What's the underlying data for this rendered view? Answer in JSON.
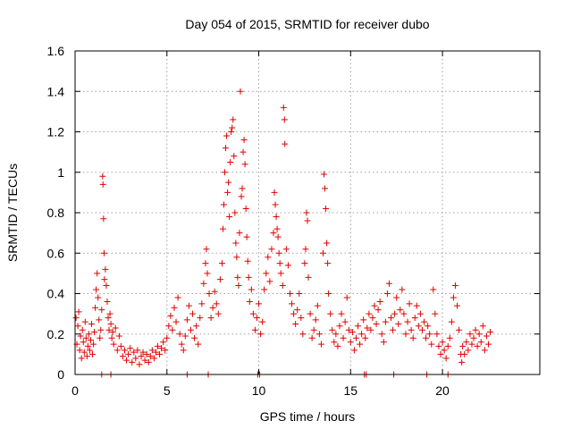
{
  "chart_data": {
    "type": "scatter",
    "title": "Day 054 of 2015, SRMTID for receiver dubo",
    "xlabel": "GPS time / hours",
    "ylabel": "SRMTID / TECUs",
    "xlim": [
      0,
      25.3
    ],
    "ylim": [
      0,
      1.6
    ],
    "x_ticks": [
      0,
      5,
      10,
      15,
      20
    ],
    "x_tick_labels": [
      "0",
      "5",
      "10",
      "15",
      "20"
    ],
    "y_ticks": [
      0,
      0.2,
      0.4,
      0.6,
      0.8,
      1.0,
      1.2,
      1.4,
      1.6
    ],
    "y_tick_labels": [
      "0",
      "0.2",
      "0.4",
      "0.6",
      "0.8",
      "1",
      "1.2",
      "1.4",
      "1.6"
    ],
    "grid": true,
    "marker": "+",
    "marker_color": "#e00000",
    "series": [
      {
        "name": "SRMTID",
        "points": [
          [
            0.05,
            0.28
          ],
          [
            0.1,
            0.15
          ],
          [
            0.15,
            0.24
          ],
          [
            0.2,
            0.31
          ],
          [
            0.25,
            0.12
          ],
          [
            0.3,
            0.19
          ],
          [
            0.35,
            0.08
          ],
          [
            0.4,
            0.22
          ],
          [
            0.45,
            0.16
          ],
          [
            0.5,
            0.11
          ],
          [
            0.55,
            0.26
          ],
          [
            0.6,
            0.18
          ],
          [
            0.65,
            0.09
          ],
          [
            0.7,
            0.14
          ],
          [
            0.75,
            0.2
          ],
          [
            0.8,
            0.12
          ],
          [
            0.85,
            0.17
          ],
          [
            0.9,
            0.25
          ],
          [
            0.95,
            0.1
          ],
          [
            1.0,
            0.15
          ],
          [
            1.05,
            0.21
          ],
          [
            1.1,
            0.33
          ],
          [
            1.15,
            0.42
          ],
          [
            1.2,
            0.5
          ],
          [
            1.25,
            0.38
          ],
          [
            1.3,
            0.27
          ],
          [
            1.35,
            0.18
          ],
          [
            1.4,
            0.22
          ],
          [
            1.45,
            0.32
          ],
          [
            1.5,
            0.98
          ],
          [
            1.52,
            0.94
          ],
          [
            1.55,
            0.77
          ],
          [
            1.58,
            0.6
          ],
          [
            1.6,
            0.47
          ],
          [
            1.65,
            0.52
          ],
          [
            1.7,
            0.44
          ],
          [
            1.75,
            0.36
          ],
          [
            1.8,
            0.28
          ],
          [
            1.85,
            0.22
          ],
          [
            1.9,
            0.3
          ],
          [
            1.95,
            0.25
          ],
          [
            2.0,
            0.18
          ],
          [
            2.05,
            0.21
          ],
          [
            2.1,
            0.15
          ],
          [
            2.2,
            0.23
          ],
          [
            2.3,
            0.12
          ],
          [
            2.4,
            0.19
          ],
          [
            2.5,
            0.14
          ],
          [
            2.6,
            0.09
          ],
          [
            2.7,
            0.12
          ],
          [
            2.8,
            0.07
          ],
          [
            2.9,
            0.1
          ],
          [
            3.0,
            0.13
          ],
          [
            3.1,
            0.06
          ],
          [
            3.2,
            0.11
          ],
          [
            3.3,
            0.08
          ],
          [
            3.4,
            0.12
          ],
          [
            3.5,
            0.05
          ],
          [
            3.6,
            0.09
          ],
          [
            3.7,
            0.11
          ],
          [
            3.8,
            0.07
          ],
          [
            3.9,
            0.1
          ],
          [
            4.0,
            0.06
          ],
          [
            4.1,
            0.09
          ],
          [
            4.2,
            0.12
          ],
          [
            4.3,
            0.08
          ],
          [
            4.4,
            0.11
          ],
          [
            4.5,
            0.14
          ],
          [
            4.6,
            0.1
          ],
          [
            4.7,
            0.13
          ],
          [
            4.8,
            0.16
          ],
          [
            4.9,
            0.12
          ],
          [
            5.0,
            0.18
          ],
          [
            5.1,
            0.24
          ],
          [
            5.2,
            0.29
          ],
          [
            5.3,
            0.22
          ],
          [
            5.4,
            0.33
          ],
          [
            5.5,
            0.26
          ],
          [
            5.6,
            0.38
          ],
          [
            5.7,
            0.2
          ],
          [
            5.8,
            0.15
          ],
          [
            5.9,
            0.12
          ],
          [
            6.0,
            0.19
          ],
          [
            6.1,
            0.27
          ],
          [
            6.2,
            0.34
          ],
          [
            6.3,
            0.22
          ],
          [
            6.4,
            0.3
          ],
          [
            6.5,
            0.18
          ],
          [
            6.6,
            0.24
          ],
          [
            6.7,
            0.15
          ],
          [
            6.8,
            0.28
          ],
          [
            6.9,
            0.35
          ],
          [
            7.0,
            0.45
          ],
          [
            7.1,
            0.55
          ],
          [
            7.15,
            0.62
          ],
          [
            7.2,
            0.5
          ],
          [
            7.3,
            0.4
          ],
          [
            7.4,
            0.28
          ],
          [
            7.5,
            0.33
          ],
          [
            7.6,
            0.41
          ],
          [
            7.7,
            0.35
          ],
          [
            7.8,
            0.3
          ],
          [
            7.9,
            0.47
          ],
          [
            8.0,
            0.55
          ],
          [
            8.05,
            0.72
          ],
          [
            8.1,
            0.84
          ],
          [
            8.15,
            1.0
          ],
          [
            8.2,
            1.12
          ],
          [
            8.25,
            1.18
          ],
          [
            8.3,
            0.9
          ],
          [
            8.35,
            0.95
          ],
          [
            8.4,
            0.78
          ],
          [
            8.45,
            1.05
          ],
          [
            8.5,
            1.2
          ],
          [
            8.55,
            1.22
          ],
          [
            8.6,
            1.26
          ],
          [
            8.65,
            1.08
          ],
          [
            8.7,
            0.8
          ],
          [
            8.75,
            0.65
          ],
          [
            8.8,
            0.58
          ],
          [
            8.85,
            0.48
          ],
          [
            8.9,
            0.44
          ],
          [
            8.95,
            0.7
          ],
          [
            9.0,
            1.4
          ],
          [
            9.05,
            0.88
          ],
          [
            9.1,
            0.92
          ],
          [
            9.15,
            1.1
          ],
          [
            9.2,
            1.16
          ],
          [
            9.25,
            1.04
          ],
          [
            9.3,
            0.82
          ],
          [
            9.35,
            0.68
          ],
          [
            9.4,
            0.56
          ],
          [
            9.45,
            0.48
          ],
          [
            9.5,
            0.36
          ],
          [
            9.6,
            0.42
          ],
          [
            9.7,
            0.3
          ],
          [
            9.8,
            0.22
          ],
          [
            9.9,
            0.28
          ],
          [
            10.0,
            0.35
          ],
          [
            10.1,
            0.2
          ],
          [
            10.2,
            0.26
          ],
          [
            10.3,
            0.42
          ],
          [
            10.4,
            0.5
          ],
          [
            10.5,
            0.58
          ],
          [
            10.6,
            0.46
          ],
          [
            10.7,
            0.62
          ],
          [
            10.8,
            0.7
          ],
          [
            10.85,
            0.9
          ],
          [
            10.9,
            0.84
          ],
          [
            10.95,
            0.78
          ],
          [
            11.0,
            0.72
          ],
          [
            11.05,
            0.68
          ],
          [
            11.1,
            0.6
          ],
          [
            11.15,
            0.55
          ],
          [
            11.2,
            0.5
          ],
          [
            11.3,
            0.44
          ],
          [
            11.35,
            1.32
          ],
          [
            11.4,
            1.26
          ],
          [
            11.42,
            1.14
          ],
          [
            11.5,
            0.62
          ],
          [
            11.6,
            0.54
          ],
          [
            11.7,
            0.4
          ],
          [
            11.8,
            0.35
          ],
          [
            11.9,
            0.3
          ],
          [
            12.0,
            0.25
          ],
          [
            12.1,
            0.32
          ],
          [
            12.2,
            0.4
          ],
          [
            12.3,
            0.28
          ],
          [
            12.4,
            0.2
          ],
          [
            12.5,
            0.55
          ],
          [
            12.55,
            0.62
          ],
          [
            12.6,
            0.8
          ],
          [
            12.65,
            0.76
          ],
          [
            12.7,
            0.48
          ],
          [
            12.8,
            0.3
          ],
          [
            12.9,
            0.18
          ],
          [
            13.0,
            0.22
          ],
          [
            13.1,
            0.27
          ],
          [
            13.2,
            0.34
          ],
          [
            13.3,
            0.2
          ],
          [
            13.4,
            0.15
          ],
          [
            13.5,
            0.6
          ],
          [
            13.55,
            0.99
          ],
          [
            13.6,
            0.92
          ],
          [
            13.65,
            0.82
          ],
          [
            13.7,
            0.65
          ],
          [
            13.75,
            0.55
          ],
          [
            13.8,
            0.4
          ],
          [
            13.9,
            0.3
          ],
          [
            14.0,
            0.22
          ],
          [
            14.1,
            0.16
          ],
          [
            14.2,
            0.2
          ],
          [
            14.3,
            0.14
          ],
          [
            14.4,
            0.24
          ],
          [
            14.5,
            0.3
          ],
          [
            14.6,
            0.18
          ],
          [
            14.7,
            0.26
          ],
          [
            14.8,
            0.38
          ],
          [
            14.9,
            0.22
          ],
          [
            15.0,
            0.16
          ],
          [
            15.1,
            0.21
          ],
          [
            15.2,
            0.12
          ],
          [
            15.3,
            0.18
          ],
          [
            15.4,
            0.24
          ],
          [
            15.5,
            0.15
          ],
          [
            15.6,
            0.2
          ],
          [
            15.7,
            0.27
          ],
          [
            15.8,
            0.18
          ],
          [
            15.9,
            0.23
          ],
          [
            16.0,
            0.3
          ],
          [
            16.1,
            0.22
          ],
          [
            16.2,
            0.28
          ],
          [
            16.3,
            0.34
          ],
          [
            16.4,
            0.25
          ],
          [
            16.5,
            0.32
          ],
          [
            16.6,
            0.36
          ],
          [
            16.7,
            0.2
          ],
          [
            16.8,
            0.16
          ],
          [
            16.9,
            0.26
          ],
          [
            17.0,
            0.4
          ],
          [
            17.1,
            0.45
          ],
          [
            17.2,
            0.28
          ],
          [
            17.3,
            0.22
          ],
          [
            17.4,
            0.3
          ],
          [
            17.5,
            0.38
          ],
          [
            17.6,
            0.25
          ],
          [
            17.7,
            0.32
          ],
          [
            17.8,
            0.42
          ],
          [
            17.9,
            0.3
          ],
          [
            18.0,
            0.2
          ],
          [
            18.1,
            0.26
          ],
          [
            18.2,
            0.35
          ],
          [
            18.3,
            0.22
          ],
          [
            18.4,
            0.18
          ],
          [
            18.5,
            0.28
          ],
          [
            18.6,
            0.34
          ],
          [
            18.7,
            0.24
          ],
          [
            18.8,
            0.3
          ],
          [
            18.9,
            0.22
          ],
          [
            19.0,
            0.26
          ],
          [
            19.1,
            0.18
          ],
          [
            19.2,
            0.24
          ],
          [
            19.3,
            0.2
          ],
          [
            19.4,
            0.15
          ],
          [
            19.5,
            0.42
          ],
          [
            19.6,
            0.3
          ],
          [
            19.7,
            0.2
          ],
          [
            19.8,
            0.14
          ],
          [
            19.9,
            0.1
          ],
          [
            20.0,
            0.16
          ],
          [
            20.1,
            0.12
          ],
          [
            20.2,
            0.08
          ],
          [
            20.3,
            0.14
          ],
          [
            20.4,
            0.18
          ],
          [
            20.5,
            0.26
          ],
          [
            20.6,
            0.38
          ],
          [
            20.7,
            0.44
          ],
          [
            20.8,
            0.34
          ],
          [
            20.9,
            0.22
          ],
          [
            21.0,
            0.1
          ],
          [
            21.05,
            0.06
          ],
          [
            21.1,
            0.14
          ],
          [
            21.2,
            0.1
          ],
          [
            21.3,
            0.16
          ],
          [
            21.4,
            0.12
          ],
          [
            21.5,
            0.2
          ],
          [
            21.6,
            0.15
          ],
          [
            21.7,
            0.18
          ],
          [
            21.8,
            0.22
          ],
          [
            21.9,
            0.14
          ],
          [
            22.0,
            0.2
          ],
          [
            22.1,
            0.16
          ],
          [
            22.2,
            0.24
          ],
          [
            22.3,
            0.12
          ],
          [
            22.4,
            0.19
          ],
          [
            22.5,
            0.15
          ],
          [
            22.6,
            0.21
          ]
        ],
        "zero_points": [
          1.45,
          1.95,
          6.1,
          7.25,
          9.95,
          10.05,
          15.75,
          15.85,
          17.35,
          19.15,
          20.3
        ]
      }
    ]
  }
}
